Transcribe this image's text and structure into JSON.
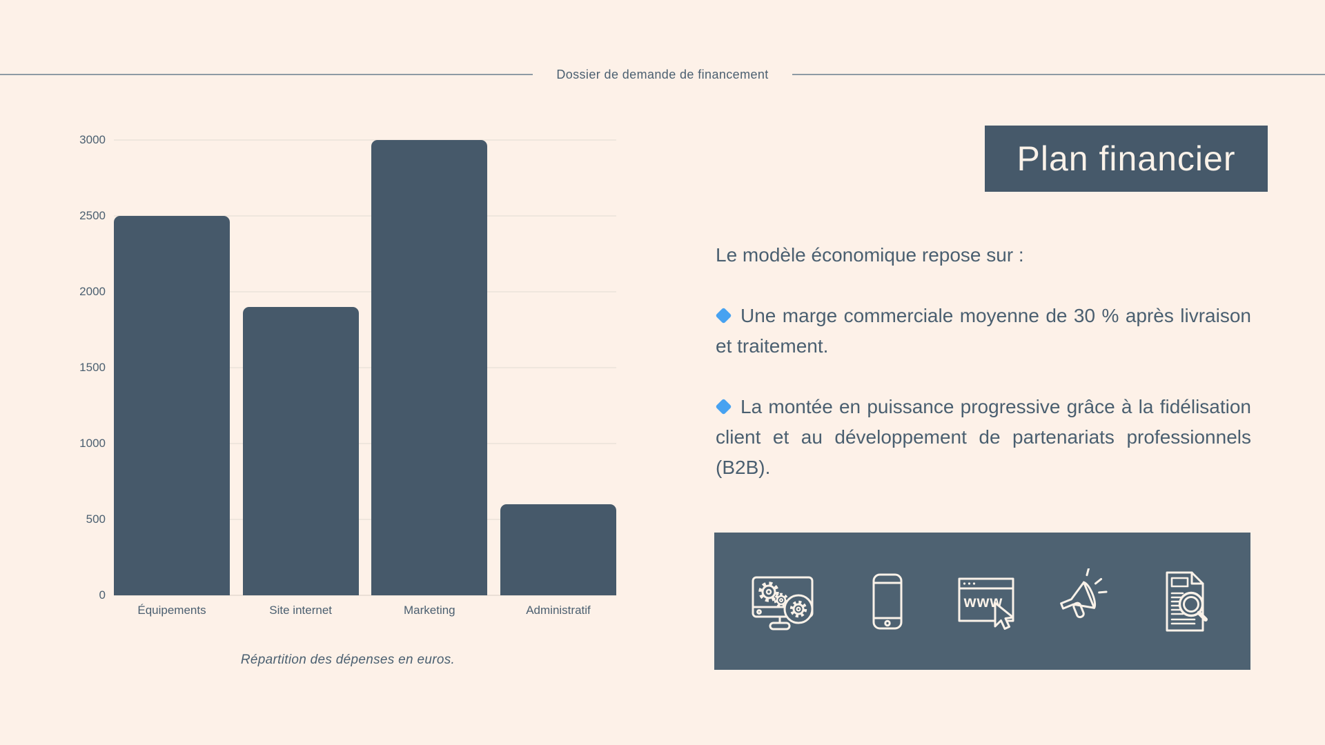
{
  "page": {
    "background_color": "#fdf1e8",
    "slate_color": "#46596a",
    "icon_box_color": "#4e6272",
    "cream_color": "#faf2e9",
    "bullet_diamond_color": "#47a2f1"
  },
  "header": {
    "title": "Dossier de demande de financement"
  },
  "title_box": {
    "label": "Plan financier"
  },
  "body": {
    "intro": "Le modèle économique repose sur :",
    "bullets": [
      "Une marge commerciale moyenne de 30 % après livraison et traitement.",
      "La montée en puissance progressive grâce à la fidélisation client et au développement de partenariats professionnels (B2B)."
    ]
  },
  "icon_strip": {
    "icons": [
      "computer-gears-icon",
      "smartphone-icon",
      "browser-www-icon",
      "megaphone-icon",
      "document-search-icon"
    ],
    "browser_label": "www"
  },
  "chart_data": {
    "type": "bar",
    "categories": [
      "Équipements",
      "Site internet",
      "Marketing",
      "Administratif"
    ],
    "values": [
      2500,
      1900,
      3000,
      600
    ],
    "title": "",
    "xlabel": "",
    "ylabel": "",
    "caption": "Répartition des dépenses en euros.",
    "ylim": [
      0,
      3000
    ],
    "yticks": [
      0,
      500,
      1000,
      1500,
      2000,
      2500,
      3000
    ],
    "grid": true,
    "legend": false,
    "bar_color": "#46596a"
  }
}
